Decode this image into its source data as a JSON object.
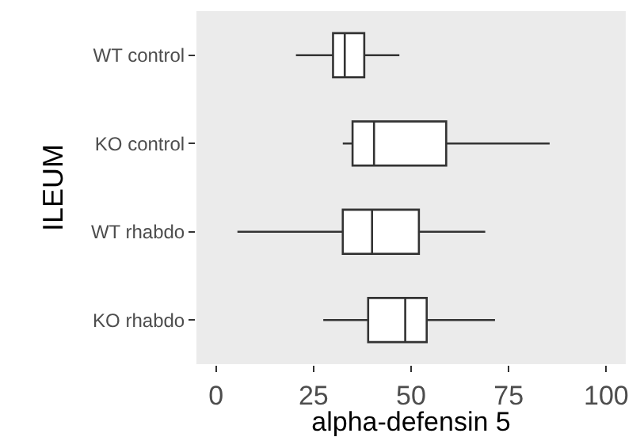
{
  "chart_data": {
    "type": "box",
    "orientation": "horizontal",
    "xlabel": "alpha-defensin 5",
    "ylabel": "ILEUM",
    "categories": [
      "WT control",
      "KO control",
      "WT rhabdo",
      "KO rhabdo"
    ],
    "boxes": [
      {
        "low": 20.5,
        "q1": 30,
        "median": 33,
        "q3": 38,
        "high": 47
      },
      {
        "low": 32.5,
        "q1": 35,
        "median": 40.5,
        "q3": 59,
        "high": 85.5
      },
      {
        "low": 5.5,
        "q1": 32.5,
        "median": 40,
        "q3": 52,
        "high": 69
      },
      {
        "low": 27.5,
        "q1": 39,
        "median": 48.5,
        "q3": 54,
        "high": 71.5
      }
    ],
    "color": "#ffffff",
    "xlim": [
      -5,
      105
    ],
    "xticks": [
      0,
      25,
      50,
      75,
      100
    ]
  }
}
